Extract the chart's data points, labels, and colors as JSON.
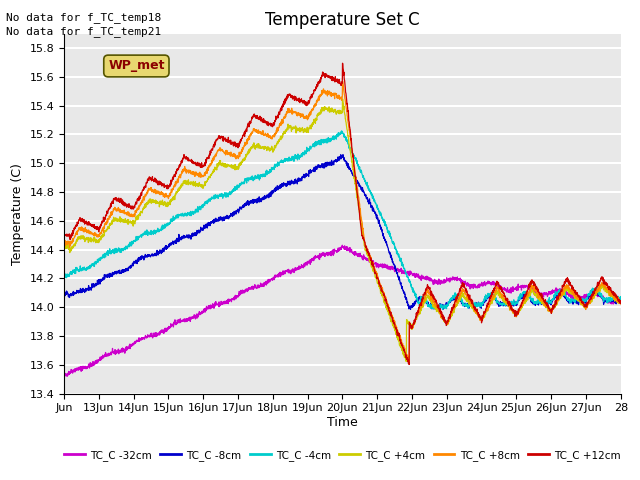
{
  "title": "Temperature Set C",
  "ylabel": "Temperature (C)",
  "xlabel": "Time",
  "no_data_text": [
    "No data for f_TC_temp18",
    "No data for f_TC_temp21"
  ],
  "wp_met_label": "WP_met",
  "wp_met_color": "#8B0000",
  "wp_met_bg": "#e8d870",
  "ylim": [
    13.4,
    15.9
  ],
  "background_color": "#e8e8e8",
  "grid_color": "white",
  "series": [
    {
      "label": "TC_C -32cm",
      "color": "#cc00cc"
    },
    {
      "label": "TC_C -8cm",
      "color": "#0000cc"
    },
    {
      "label": "TC_C -4cm",
      "color": "#00cccc"
    },
    {
      "label": "TC_C +4cm",
      "color": "#cccc00"
    },
    {
      "label": "TC_C +8cm",
      "color": "#ff8800"
    },
    {
      "label": "TC_C +12cm",
      "color": "#cc0000"
    }
  ],
  "x_tick_labels": [
    "Jun",
    "13Jun",
    "14Jun",
    "15Jun",
    "16Jun",
    "17Jun",
    "18Jun",
    "19Jun",
    "20Jun",
    "21Jun",
    "22Jun",
    "23Jun",
    "24Jun",
    "25Jun",
    "26Jun",
    "27Jun",
    "28"
  ],
  "x_tick_positions": [
    0,
    1,
    2,
    3,
    4,
    5,
    6,
    7,
    8,
    9,
    10,
    11,
    12,
    13,
    14,
    15,
    16
  ],
  "y_ticks": [
    13.4,
    13.6,
    13.8,
    14.0,
    14.2,
    14.4,
    14.6,
    14.8,
    15.0,
    15.2,
    15.4,
    15.6,
    15.8
  ]
}
